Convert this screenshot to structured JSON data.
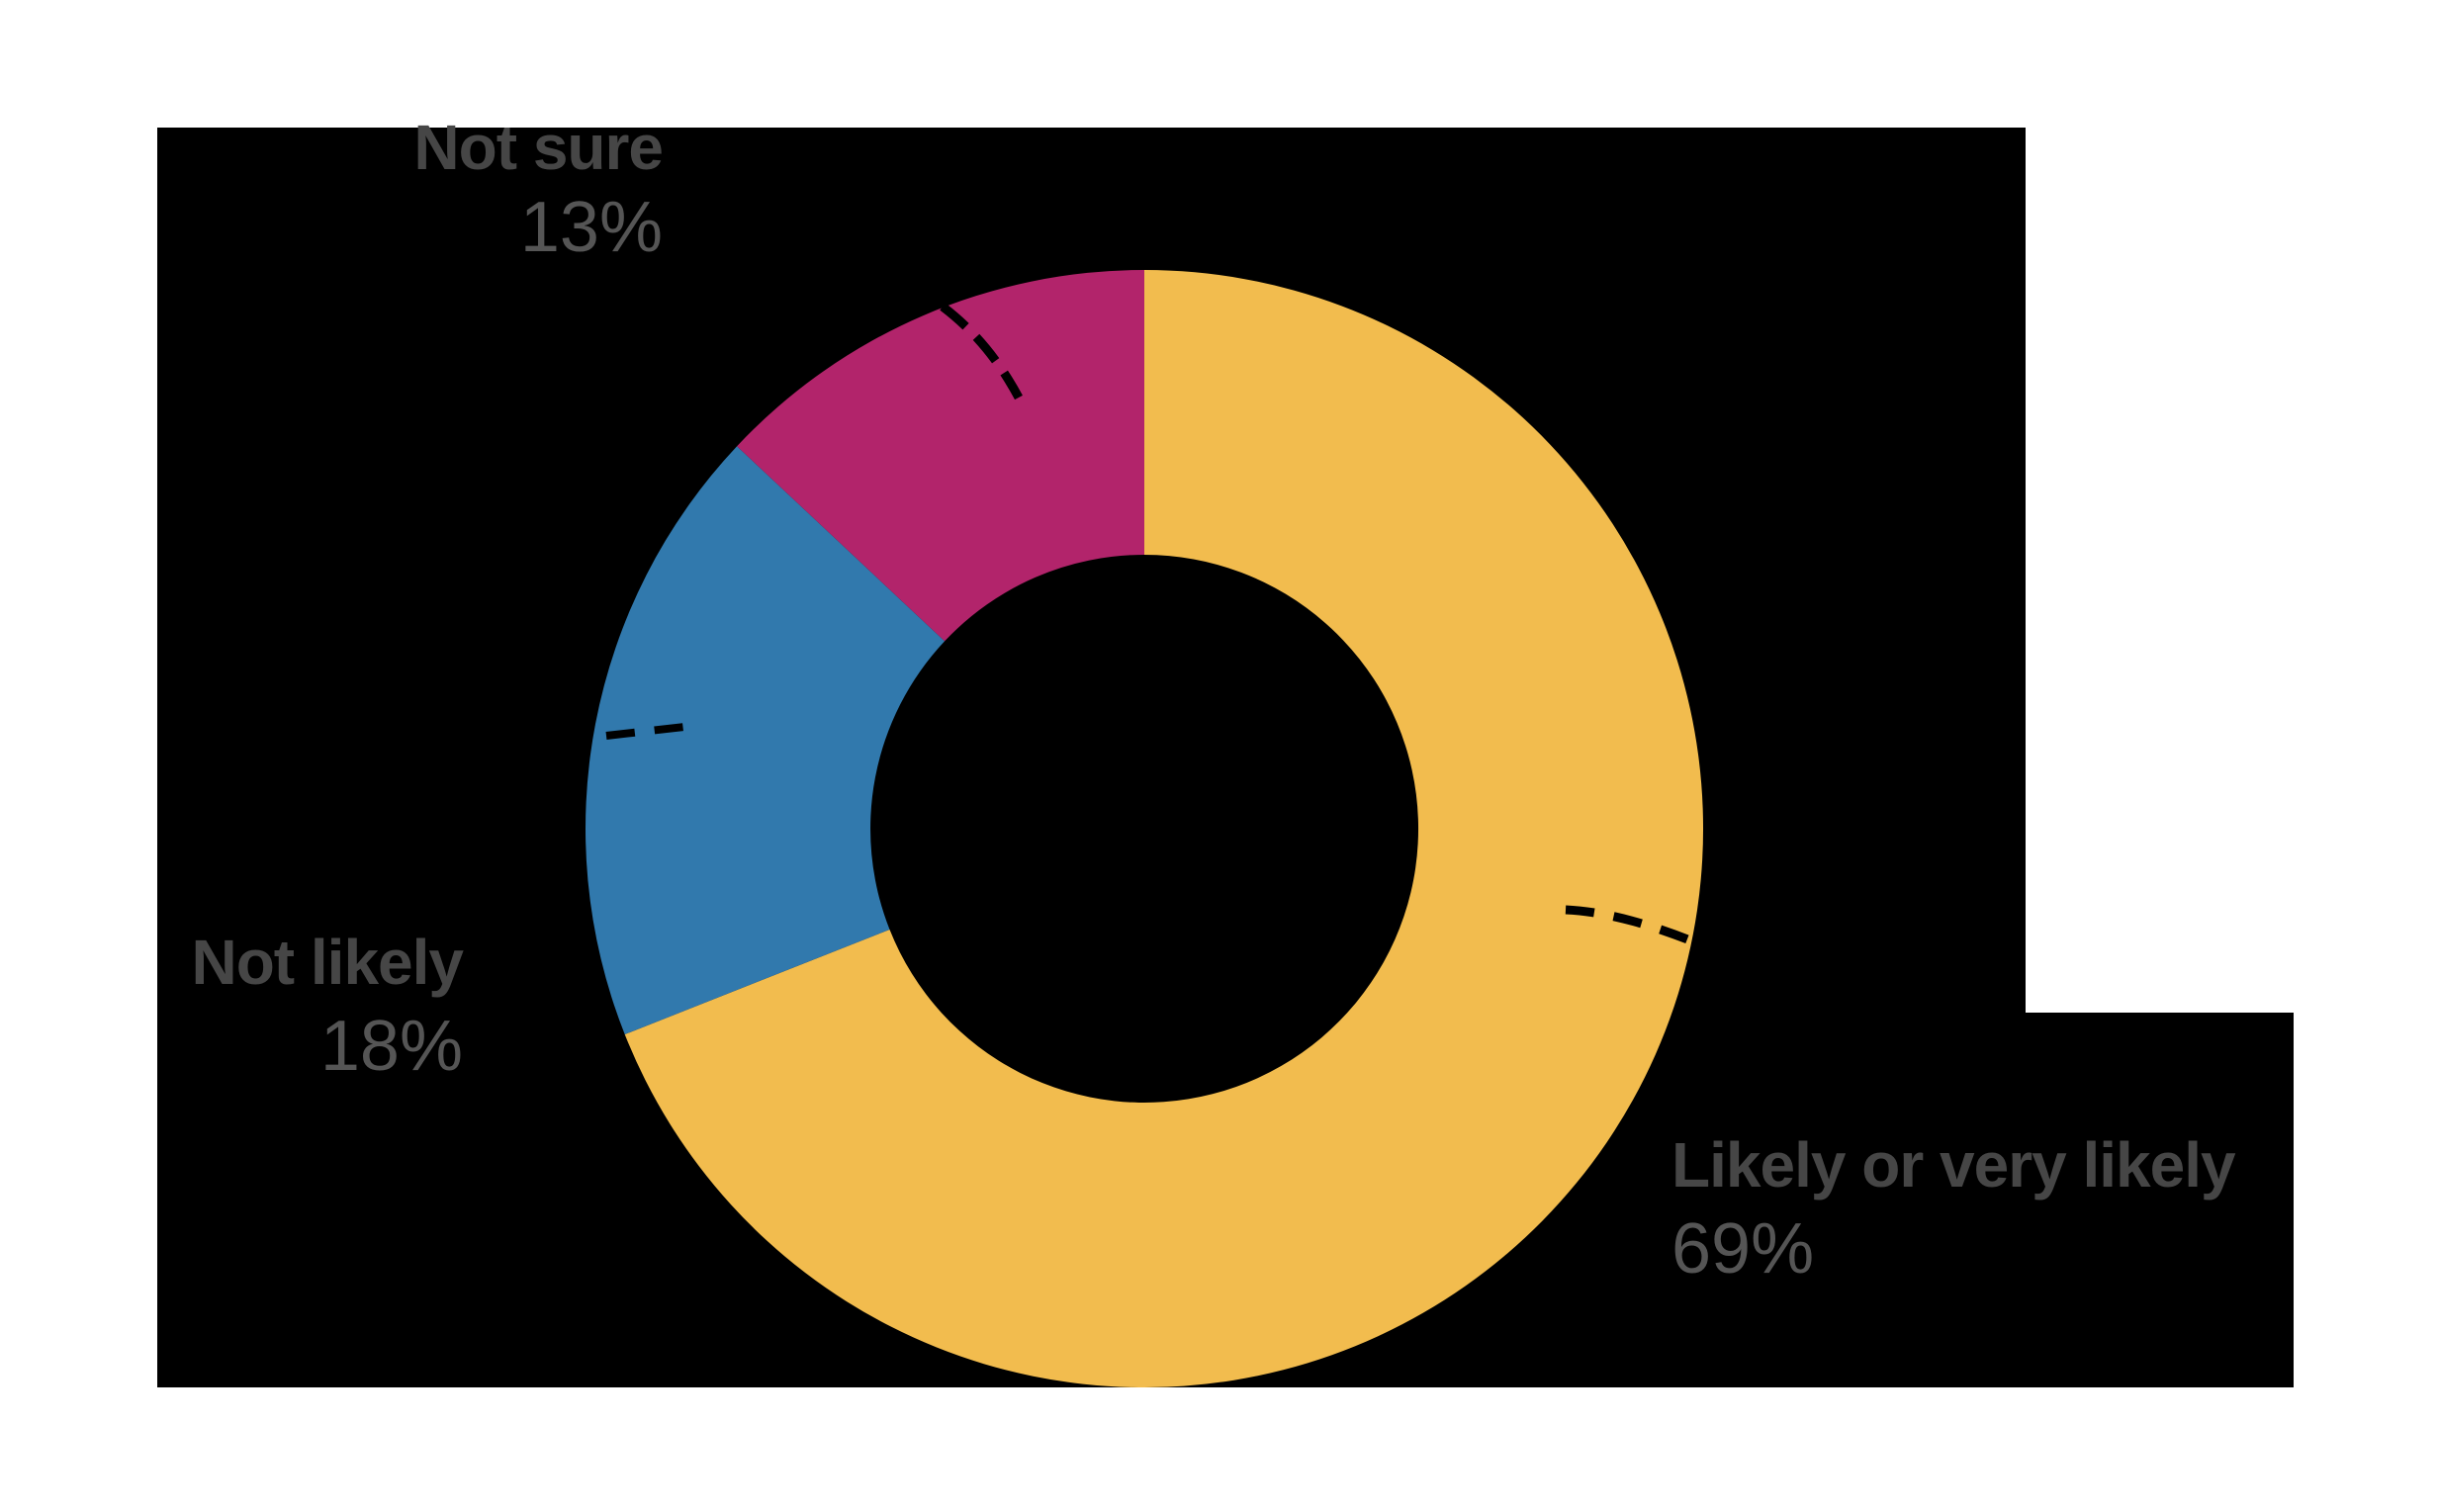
{
  "canvas": {
    "background_color": "#ffffff",
    "panel_color": "#000000"
  },
  "chart_data": {
    "type": "pie",
    "subtype": "donut",
    "title": "",
    "legend": "none",
    "start_angle_deg": 0,
    "direction": "clockwise",
    "inner_to_outer_ratio": 0.49,
    "segments": [
      {
        "label": "Likely or very likely",
        "value_pct": 69,
        "display": "69%",
        "color": "#F2BC4E"
      },
      {
        "label": "Not likely",
        "value_pct": 18,
        "display": "18%",
        "color": "#3179AD"
      },
      {
        "label": "Not sure",
        "value_pct": 13,
        "display": "13%",
        "color": "#B2246B"
      }
    ],
    "label_text_color": "#464646",
    "value_text_color": "#555555",
    "leader_line_color": "#000000"
  },
  "labels": {
    "not_sure": {
      "title": "Not sure",
      "value": "13%"
    },
    "not_likely": {
      "title": "Not likely",
      "value": "18%"
    },
    "likely": {
      "title": "Likely or very likely",
      "value": "69%"
    }
  }
}
